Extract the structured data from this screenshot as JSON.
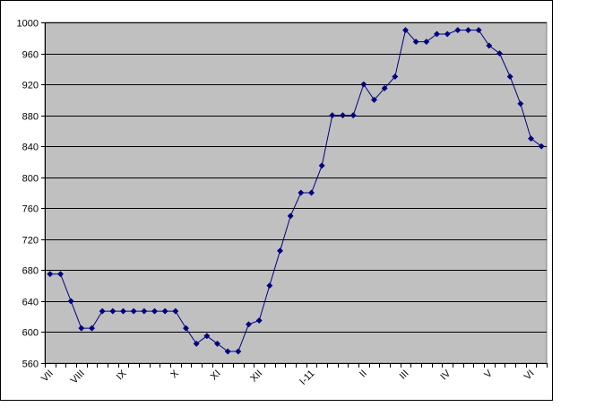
{
  "chart_data": {
    "type": "line",
    "title": "",
    "xlabel": "",
    "ylabel": "",
    "ylim": [
      560,
      1000
    ],
    "yticks": [
      560,
      600,
      640,
      680,
      720,
      760,
      800,
      840,
      880,
      920,
      960,
      1000
    ],
    "grid": true,
    "legend": "none",
    "x_tick_labels": [
      "VII",
      "VIII",
      "IX",
      "X",
      "XI",
      "XII",
      "I-11",
      "II",
      "III",
      "IV",
      "V",
      "VI"
    ],
    "x_tick_label_positions": [
      0,
      3,
      7,
      12,
      16,
      20,
      25,
      30,
      34,
      38,
      42,
      46
    ],
    "series": [
      {
        "values": [
          675,
          675,
          640,
          605,
          605,
          627,
          627,
          627,
          627,
          627,
          627,
          627,
          627,
          605,
          585,
          595,
          585,
          575,
          575,
          610,
          615,
          660,
          705,
          750,
          780,
          780,
          815,
          880,
          880,
          880,
          920,
          900,
          915,
          930,
          990,
          975,
          975,
          985,
          985,
          990,
          990,
          990,
          970,
          960,
          930,
          895,
          850,
          840
        ]
      }
    ],
    "colors": {
      "plot_background": "#c0c0c0",
      "line": "#000080",
      "grid": "#000000"
    }
  }
}
